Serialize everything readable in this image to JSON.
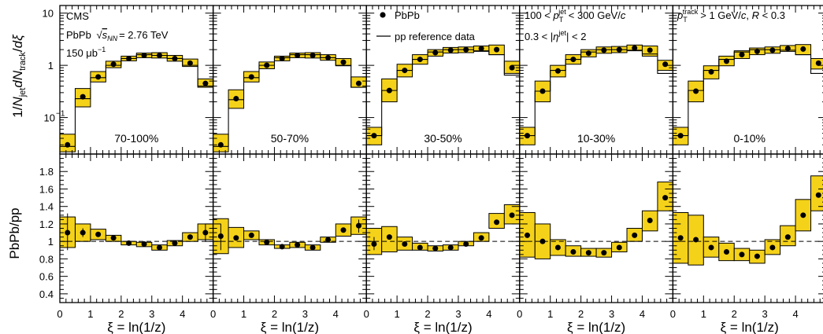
{
  "chart_data": {
    "type": "scatter",
    "experiment": "CMS",
    "collision_label": "PbPb",
    "energy_label": "= 2.76 TeV",
    "luminosity": "150 μb",
    "luminosity_exp": "−1",
    "legend": {
      "data": "PbPb",
      "reference": "pp reference data"
    },
    "cuts": {
      "pt_jet": "100 < p < 300 GeV/c",
      "eta_jet": "0.3 < |η| < 2",
      "pt_track": "p > 1 GeV/c, R < 0.3"
    },
    "top_ylabel": "1/N dN /dξ",
    "bottom_ylabel": "PbPb/pp",
    "xlabel": "ξ = ln(1/z)",
    "xlim": [
      0,
      5
    ],
    "xticks": [
      "0",
      "1",
      "2",
      "3",
      "4"
    ],
    "top_ylim": [
      0.02,
      14
    ],
    "top_yticks": [
      "10",
      "1",
      "10"
    ],
    "top_ytick_exp": "−1",
    "bottom_ylim": [
      0.3,
      2.0
    ],
    "bottom_yticks": [
      "0.4",
      "0.6",
      "0.8",
      "1",
      "1.2",
      "1.4",
      "1.6",
      "1.8"
    ],
    "x": [
      0.25,
      0.75,
      1.25,
      1.75,
      2.25,
      2.75,
      3.25,
      3.75,
      4.25,
      4.75
    ],
    "panels": [
      {
        "centrality": "70-100%",
        "pbpb": [
          0.03,
          0.25,
          0.6,
          1.05,
          1.35,
          1.55,
          1.55,
          1.35,
          1.1,
          0.45
        ],
        "pbpb_box": [
          [
            0.022,
            0.048
          ],
          [
            0.16,
            0.36
          ],
          [
            0.48,
            0.76
          ],
          [
            0.9,
            1.2
          ],
          [
            1.22,
            1.5
          ],
          [
            1.4,
            1.72
          ],
          [
            1.38,
            1.75
          ],
          [
            1.2,
            1.55
          ],
          [
            0.95,
            1.32
          ],
          [
            0.38,
            0.55
          ]
        ],
        "pp": [
          0.028,
          0.23,
          0.58,
          1.0,
          1.35,
          1.6,
          1.55,
          1.35,
          1.0,
          0.4
        ],
        "ratio": [
          1.1,
          1.1,
          1.08,
          1.04,
          0.98,
          0.97,
          0.93,
          0.98,
          1.05,
          1.1
        ],
        "ratio_box": [
          [
            0.93,
            1.28
          ],
          [
            1.0,
            1.2
          ],
          [
            1.02,
            1.14
          ],
          [
            1.0,
            1.07
          ],
          [
            0.96,
            1.0
          ],
          [
            0.94,
            0.99
          ],
          [
            0.9,
            0.96
          ],
          [
            0.95,
            1.01
          ],
          [
            1.0,
            1.1
          ],
          [
            1.02,
            1.2
          ]
        ],
        "ratio_err": [
          [
            0.9,
            1.32
          ],
          [
            1.05,
            1.15
          ],
          [
            null,
            null
          ],
          [
            null,
            null
          ],
          [
            null,
            null
          ],
          [
            null,
            null
          ],
          [
            null,
            null
          ],
          [
            null,
            null
          ],
          [
            null,
            null
          ],
          [
            1.0,
            1.2
          ]
        ]
      },
      {
        "centrality": "50-70%",
        "pbpb": [
          0.03,
          0.23,
          0.6,
          1.0,
          1.35,
          1.55,
          1.55,
          1.4,
          1.15,
          0.45
        ],
        "pbpb_box": [
          [
            0.022,
            0.048
          ],
          [
            0.15,
            0.34
          ],
          [
            0.48,
            0.76
          ],
          [
            0.86,
            1.16
          ],
          [
            1.22,
            1.5
          ],
          [
            1.4,
            1.72
          ],
          [
            1.38,
            1.75
          ],
          [
            1.25,
            1.6
          ],
          [
            0.98,
            1.35
          ],
          [
            0.38,
            0.6
          ]
        ],
        "pp": [
          0.028,
          0.22,
          0.58,
          1.0,
          1.4,
          1.6,
          1.6,
          1.4,
          1.0,
          0.38
        ],
        "ratio": [
          1.06,
          1.04,
          1.07,
          0.99,
          0.94,
          0.96,
          0.93,
          1.02,
          1.13,
          1.18
        ],
        "ratio_box": [
          [
            0.86,
            1.26
          ],
          [
            0.93,
            1.16
          ],
          [
            1.02,
            1.12
          ],
          [
            0.96,
            1.02
          ],
          [
            0.92,
            0.96
          ],
          [
            0.93,
            0.99
          ],
          [
            0.9,
            0.96
          ],
          [
            0.99,
            1.05
          ],
          [
            1.06,
            1.2
          ],
          [
            1.08,
            1.28
          ]
        ],
        "ratio_err": [
          [
            0.9,
            1.2
          ],
          [
            null,
            null
          ],
          [
            null,
            null
          ],
          [
            null,
            null
          ],
          [
            null,
            null
          ],
          [
            null,
            null
          ],
          [
            null,
            null
          ],
          [
            null,
            null
          ],
          [
            null,
            null
          ],
          [
            1.1,
            1.25
          ]
        ]
      },
      {
        "centrality": "30-50%",
        "pbpb": [
          0.045,
          0.33,
          0.8,
          1.3,
          1.75,
          1.95,
          2.0,
          2.1,
          2.0,
          0.9
        ],
        "pbpb_box": [
          [
            0.03,
            0.065
          ],
          [
            0.2,
            0.55
          ],
          [
            0.6,
            1.05
          ],
          [
            1.05,
            1.6
          ],
          [
            1.5,
            2.0
          ],
          [
            1.72,
            2.2
          ],
          [
            1.75,
            2.25
          ],
          [
            1.85,
            2.35
          ],
          [
            1.6,
            2.45
          ],
          [
            0.7,
            1.2
          ]
        ],
        "pp": [
          0.045,
          0.33,
          0.8,
          1.3,
          1.8,
          2.0,
          2.0,
          1.9,
          1.6,
          0.65
        ],
        "ratio": [
          0.97,
          1.05,
          0.97,
          0.93,
          0.92,
          0.93,
          0.97,
          1.04,
          1.22,
          1.3
        ],
        "ratio_box": [
          [
            0.85,
            1.15
          ],
          [
            0.88,
            1.17
          ],
          [
            0.9,
            1.05
          ],
          [
            0.9,
            0.98
          ],
          [
            0.89,
            0.95
          ],
          [
            0.9,
            0.96
          ],
          [
            0.95,
            1.0
          ],
          [
            1.0,
            1.1
          ],
          [
            1.15,
            1.32
          ],
          [
            1.2,
            1.42
          ]
        ],
        "ratio_err": [
          [
            0.9,
            1.05
          ],
          [
            null,
            null
          ],
          [
            null,
            null
          ],
          [
            null,
            null
          ],
          [
            null,
            null
          ],
          [
            null,
            null
          ],
          [
            null,
            null
          ],
          [
            null,
            null
          ],
          [
            null,
            null
          ],
          [
            null,
            null
          ]
        ]
      },
      {
        "centrality": "10-30%",
        "pbpb": [
          0.045,
          0.32,
          0.78,
          1.3,
          1.7,
          1.95,
          2.0,
          2.15,
          1.95,
          1.05
        ],
        "pbpb_box": [
          [
            0.03,
            0.065
          ],
          [
            0.2,
            0.5
          ],
          [
            0.6,
            1.0
          ],
          [
            1.05,
            1.6
          ],
          [
            1.45,
            2.0
          ],
          [
            1.7,
            2.25
          ],
          [
            1.75,
            2.3
          ],
          [
            1.9,
            2.45
          ],
          [
            1.5,
            2.35
          ],
          [
            0.8,
            1.25
          ]
        ],
        "pp": [
          0.045,
          0.32,
          0.8,
          1.3,
          1.8,
          2.0,
          2.0,
          1.95,
          1.65,
          0.7
        ],
        "ratio": [
          1.07,
          1.0,
          0.93,
          0.88,
          0.87,
          0.87,
          0.93,
          1.07,
          1.24,
          1.5
        ],
        "ratio_box": [
          [
            0.82,
            1.33
          ],
          [
            0.8,
            1.2
          ],
          [
            0.84,
            1.02
          ],
          [
            0.83,
            0.95
          ],
          [
            0.83,
            0.92
          ],
          [
            0.82,
            0.92
          ],
          [
            0.88,
            0.99
          ],
          [
            1.0,
            1.15
          ],
          [
            1.12,
            1.35
          ],
          [
            1.35,
            1.68
          ]
        ],
        "ratio_err": [
          [
            null,
            null
          ],
          [
            null,
            null
          ],
          [
            null,
            null
          ],
          [
            null,
            null
          ],
          [
            null,
            null
          ],
          [
            null,
            null
          ],
          [
            null,
            null
          ],
          [
            null,
            null
          ],
          [
            null,
            null
          ],
          [
            null,
            null
          ]
        ]
      },
      {
        "centrality": "0-10%",
        "pbpb": [
          0.045,
          0.32,
          0.75,
          1.2,
          1.6,
          1.85,
          1.95,
          2.1,
          2.05,
          1.1
        ],
        "pbpb_box": [
          [
            0.03,
            0.065
          ],
          [
            0.2,
            0.5
          ],
          [
            0.55,
            0.98
          ],
          [
            0.98,
            1.5
          ],
          [
            1.35,
            1.9
          ],
          [
            1.6,
            2.15
          ],
          [
            1.7,
            2.25
          ],
          [
            1.85,
            2.4
          ],
          [
            1.6,
            2.5
          ],
          [
            0.85,
            1.35
          ]
        ],
        "pp": [
          0.045,
          0.33,
          0.8,
          1.3,
          1.8,
          2.0,
          2.0,
          1.95,
          1.6,
          0.7
        ],
        "ratio": [
          1.04,
          1.02,
          0.93,
          0.88,
          0.85,
          0.83,
          0.93,
          1.05,
          1.3,
          1.53
        ],
        "ratio_box": [
          [
            0.75,
            1.33
          ],
          [
            0.73,
            1.3
          ],
          [
            0.82,
            1.05
          ],
          [
            0.78,
            0.98
          ],
          [
            0.78,
            0.92
          ],
          [
            0.75,
            0.9
          ],
          [
            0.85,
            1.02
          ],
          [
            0.95,
            1.18
          ],
          [
            1.12,
            1.48
          ],
          [
            1.35,
            1.75
          ]
        ],
        "ratio_err": [
          [
            null,
            null
          ],
          [
            null,
            null
          ],
          [
            null,
            null
          ],
          [
            null,
            null
          ],
          [
            null,
            null
          ],
          [
            null,
            null
          ],
          [
            null,
            null
          ],
          [
            null,
            null
          ],
          [
            null,
            null
          ],
          [
            null,
            null
          ]
        ]
      }
    ],
    "colors": {
      "box_fill": "#f5d21a",
      "marker": "#000000",
      "frame": "#000000"
    }
  }
}
